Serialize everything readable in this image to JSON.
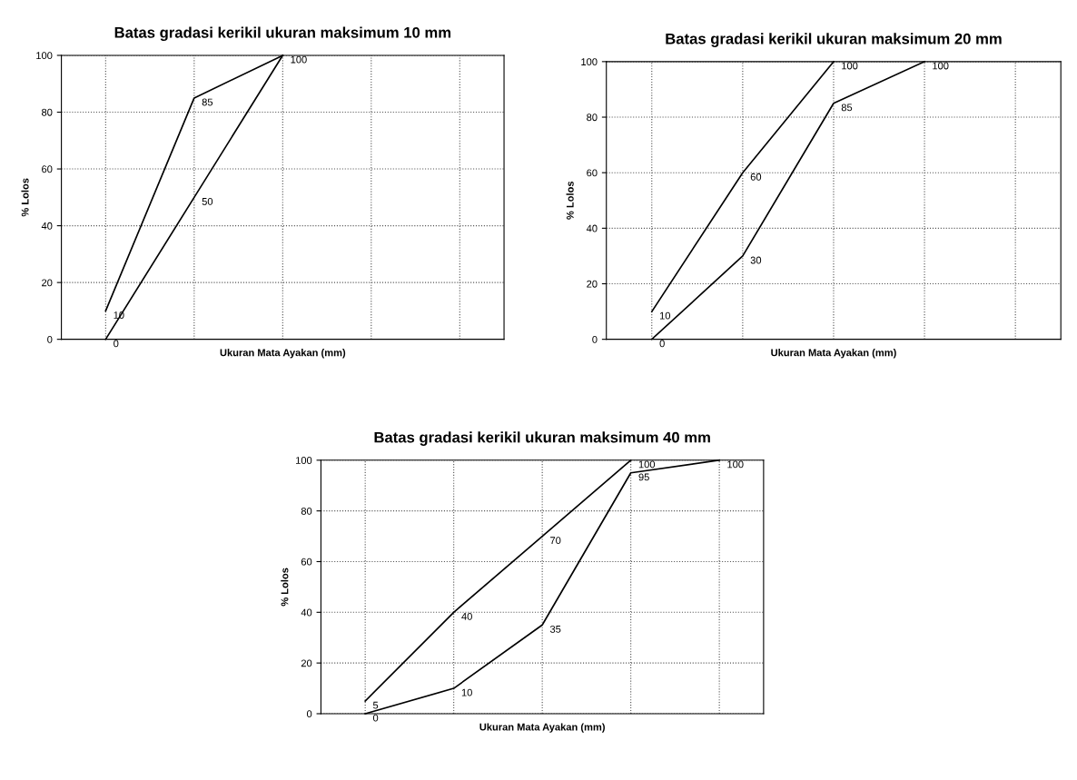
{
  "chart_data": [
    {
      "type": "line",
      "title": "Batas gradasi kerikil ukuran maksimum 10 mm",
      "xlabel": "Ukuran Mata Ayakan (mm)",
      "ylabel": "% Lolos",
      "categories": [
        null,
        null,
        null,
        null,
        null
      ],
      "ylim": [
        0,
        100
      ],
      "yticks": [
        0,
        20,
        40,
        60,
        80,
        100
      ],
      "grid": true,
      "marker": "none",
      "line_style": "solid",
      "series": [
        {
          "color": "#000000",
          "values": [
            10,
            85,
            100,
            null,
            null
          ],
          "value_labels": [
            "10",
            "85",
            "100",
            null,
            null
          ]
        },
        {
          "color": "#000000",
          "values": [
            0,
            50,
            100,
            null,
            null
          ],
          "value_labels": [
            "0",
            "50",
            null,
            null,
            null
          ]
        }
      ]
    },
    {
      "type": "line",
      "title": "Batas gradasi kerikil ukuran maksimum 20 mm",
      "xlabel": "Ukuran Mata Ayakan (mm)",
      "ylabel": "% Lolos",
      "categories": [
        null,
        null,
        null,
        null,
        null
      ],
      "ylim": [
        0,
        100
      ],
      "yticks": [
        0,
        20,
        40,
        60,
        80,
        100
      ],
      "grid": true,
      "marker": "none",
      "line_style": "solid",
      "series": [
        {
          "color": "#000000",
          "values": [
            10,
            60,
            100,
            null,
            null
          ],
          "value_labels": [
            "10",
            "60",
            "100",
            null,
            null
          ]
        },
        {
          "color": "#000000",
          "values": [
            0,
            30,
            85,
            100,
            null
          ],
          "value_labels": [
            "0",
            "30",
            "85",
            "100",
            null
          ]
        }
      ]
    },
    {
      "type": "line",
      "title": "Batas gradasi kerikil ukuran maksimum 40 mm",
      "xlabel": "Ukuran Mata Ayakan (mm)",
      "ylabel": "% Lolos",
      "categories": [
        null,
        null,
        null,
        null,
        null
      ],
      "ylim": [
        0,
        100
      ],
      "yticks": [
        0,
        20,
        40,
        60,
        80,
        100
      ],
      "grid": true,
      "marker": "none",
      "line_style": "solid",
      "series": [
        {
          "color": "#000000",
          "values": [
            5,
            40,
            70,
            100,
            null
          ],
          "value_labels": [
            "5",
            "40",
            "70",
            "100",
            null
          ]
        },
        {
          "color": "#000000",
          "values": [
            0,
            10,
            35,
            95,
            100
          ],
          "value_labels": [
            "0",
            "10",
            "35",
            "95",
            "100"
          ]
        }
      ]
    }
  ]
}
